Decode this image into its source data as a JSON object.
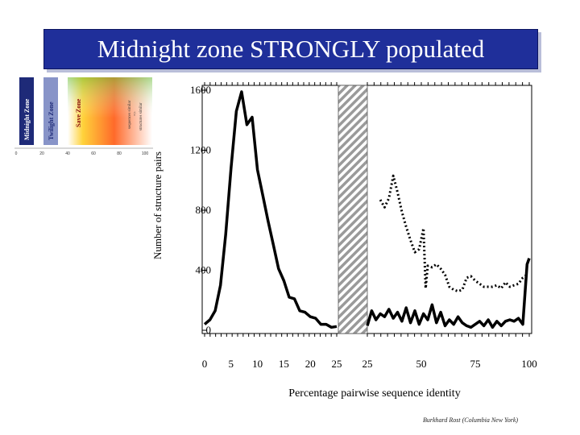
{
  "slide": {
    "title": "Midnight zone STRONGLY populated",
    "credit": "Burkhard Rost (Columbia New York)"
  },
  "inset": {
    "zones": [
      "Midnight Zone",
      "Twilight Zone",
      "Save Zone"
    ],
    "annotation": [
      "sequences similar",
      "=>",
      "structures similar"
    ],
    "x_ticks": [
      "0",
      "20",
      "40",
      "60",
      "80",
      "100"
    ]
  },
  "chart_data": {
    "type": "line",
    "xlabel": "Percentage pairwise sequence identity",
    "ylabel": "Number of structure pairs",
    "ylim": [
      0,
      1600
    ],
    "y_ticks": [
      0,
      400,
      800,
      1200,
      1600
    ],
    "grid": false,
    "panels": [
      {
        "name": "left",
        "xlim": [
          0,
          25
        ],
        "x_ticks": [
          0,
          5,
          10,
          15,
          20,
          25
        ],
        "series": [
          {
            "style": "solid",
            "x": [
              0,
              1,
              2,
              3,
              4,
              5,
              6,
              7,
              8,
              9,
              10,
              11,
              12,
              13,
              14,
              15,
              16,
              17,
              18,
              19,
              20,
              21,
              22,
              23,
              24,
              25
            ],
            "y": [
              40,
              70,
              130,
              300,
              640,
              1080,
              1460,
              1590,
              1370,
              1420,
              1070,
              900,
              730,
              570,
              410,
              330,
              220,
              210,
              130,
              120,
              90,
              80,
              40,
              40,
              20,
              25
            ]
          }
        ]
      },
      {
        "name": "right",
        "xlim": [
          25,
          100
        ],
        "x_ticks": [
          25,
          50,
          75,
          100
        ],
        "series": [
          {
            "style": "solid",
            "x": [
              25,
              27,
              29,
              31,
              33,
              35,
              37,
              39,
              41,
              43,
              45,
              47,
              49,
              51,
              53,
              55,
              57,
              59,
              61,
              63,
              65,
              67,
              69,
              71,
              73,
              75,
              77,
              79,
              81,
              83,
              85,
              87,
              89,
              91,
              93,
              95,
              97,
              99,
              100
            ],
            "y": [
              30,
              130,
              70,
              110,
              90,
              140,
              80,
              120,
              60,
              150,
              50,
              130,
              40,
              110,
              70,
              170,
              50,
              120,
              30,
              70,
              40,
              90,
              50,
              30,
              20,
              40,
              60,
              30,
              70,
              20,
              60,
              30,
              60,
              70,
              60,
              80,
              40,
              440,
              480
            ]
          },
          {
            "style": "dotted",
            "x": [
              31,
              33,
              35,
              37,
              39,
              41,
              43,
              45,
              47,
              49,
              51,
              52,
              53,
              55,
              57,
              59,
              61,
              63,
              65,
              67,
              69,
              71,
              73,
              75,
              77,
              79,
              81,
              83,
              85,
              87,
              89,
              91,
              93,
              95,
              97,
              99
            ],
            "y": [
              870,
              820,
              880,
              1030,
              920,
              790,
              690,
              600,
              520,
              540,
              680,
              280,
              430,
              420,
              440,
              410,
              370,
              290,
              270,
              260,
              270,
              350,
              360,
              330,
              310,
              290,
              290,
              290,
              300,
              280,
              320,
              290,
              300,
              310,
              350,
              370
            ]
          }
        ]
      }
    ]
  }
}
